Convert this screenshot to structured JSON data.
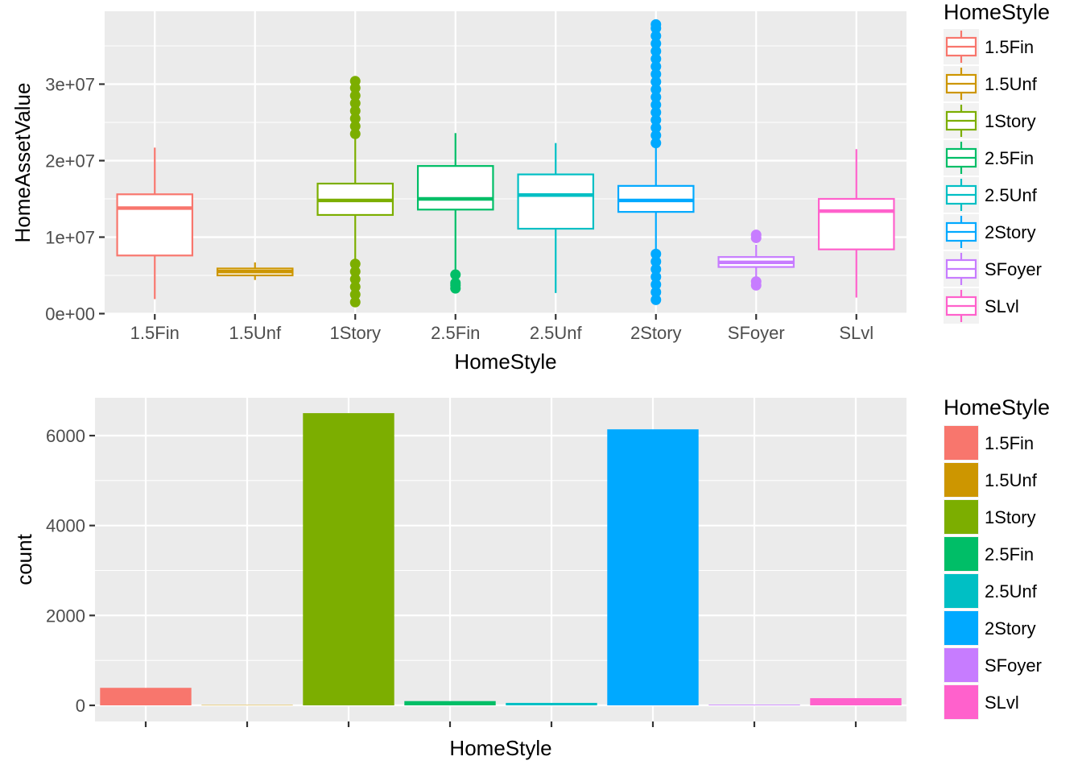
{
  "chart_data": [
    {
      "type": "boxplot",
      "xlabel": "HomeStyle",
      "ylabel": "HomeAssetValue",
      "ylim": [
        0,
        38000000
      ],
      "y_ticks": [
        0,
        10000000,
        20000000,
        30000000
      ],
      "y_tick_labels": [
        "0e+00",
        "1e+07",
        "2e+07",
        "3e+07"
      ],
      "grid": true,
      "legend": {
        "title": "HomeStyle",
        "position": "right"
      },
      "categories": [
        "1.5Fin",
        "1.5Unf",
        "1Story",
        "2.5Fin",
        "2.5Unf",
        "2Story",
        "SFoyer",
        "SLvl"
      ],
      "colors": [
        "#F8766D",
        "#CD9600",
        "#7CAE00",
        "#00BE67",
        "#00BFC4",
        "#00A9FF",
        "#C77CFF",
        "#FF61CC"
      ],
      "boxes": [
        {
          "whisker_low": 1900000,
          "q1": 7600000,
          "median": 13800000,
          "q3": 15600000,
          "whisker_high": 21700000,
          "outliers": []
        },
        {
          "whisker_low": 4400000,
          "q1": 5000000,
          "median": 5500000,
          "q3": 5900000,
          "whisker_high": 6700000,
          "outliers": []
        },
        {
          "whisker_low": 7000000,
          "q1": 12900000,
          "median": 14800000,
          "q3": 17000000,
          "whisker_high": 23000000,
          "outliers": [
            1500000,
            2500000,
            3500000,
            4500000,
            5500000,
            6500000,
            23500000,
            24500000,
            25500000,
            26500000,
            27500000,
            28500000,
            29500000,
            30400000
          ]
        },
        {
          "whisker_low": 5100000,
          "q1": 13600000,
          "median": 15000000,
          "q3": 19300000,
          "whisker_high": 23600000,
          "outliers": [
            3300000,
            3700000,
            4000000,
            5100000
          ]
        },
        {
          "whisker_low": 2700000,
          "q1": 11100000,
          "median": 15500000,
          "q3": 18200000,
          "whisker_high": 22300000,
          "outliers": []
        },
        {
          "whisker_low": 8000000,
          "q1": 13300000,
          "median": 14800000,
          "q3": 16700000,
          "whisker_high": 22000000,
          "outliers": [
            1800000,
            2800000,
            3800000,
            4800000,
            5800000,
            6800000,
            7800000,
            22300000,
            23300000,
            24300000,
            25300000,
            26300000,
            27300000,
            28300000,
            29300000,
            30300000,
            31300000,
            32300000,
            33300000,
            34300000,
            35300000,
            36300000,
            37300000,
            37800000
          ]
        },
        {
          "whisker_low": 4700000,
          "q1": 6100000,
          "median": 6700000,
          "q3": 7400000,
          "whisker_high": 9000000,
          "outliers": [
            3700000,
            4200000,
            9900000,
            10300000
          ]
        },
        {
          "whisker_low": 2100000,
          "q1": 8400000,
          "median": 13400000,
          "q3": 15000000,
          "whisker_high": 21500000,
          "outliers": []
        }
      ]
    },
    {
      "type": "bar",
      "xlabel": "HomeStyle",
      "ylabel": "count",
      "ylim": [
        0,
        6800
      ],
      "y_ticks": [
        0,
        2000,
        4000,
        6000
      ],
      "y_tick_labels": [
        "0",
        "2000",
        "4000",
        "6000"
      ],
      "grid": true,
      "legend": {
        "title": "HomeStyle",
        "position": "right"
      },
      "categories": [
        "1.5Fin",
        "1.5Unf",
        "1Story",
        "2.5Fin",
        "2.5Unf",
        "2Story",
        "SFoyer",
        "SLvl"
      ],
      "values": [
        390,
        8,
        6500,
        95,
        55,
        6140,
        15,
        160
      ],
      "colors": [
        "#F8766D",
        "#CD9600",
        "#7CAE00",
        "#00BE67",
        "#00BFC4",
        "#00A9FF",
        "#C77CFF",
        "#FF61CC"
      ]
    }
  ]
}
